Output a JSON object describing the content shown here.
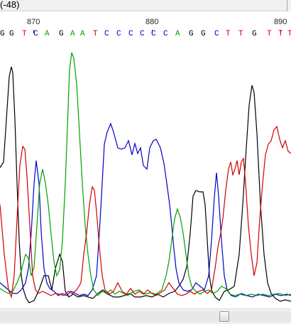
{
  "window": {
    "title_fragment": "(-48)"
  },
  "ruler": {
    "labels": [
      "870",
      "880",
      "890"
    ]
  },
  "sequence": {
    "bases": [
      "G",
      "G",
      "T",
      "C",
      "A",
      "G",
      "A",
      "A",
      "T",
      "C",
      "C",
      "C",
      "C",
      "C",
      "C",
      "A",
      "G",
      "G",
      "C",
      "T",
      "T",
      "G",
      "T",
      "T",
      "T"
    ]
  },
  "colors": {
    "A": "#00a000",
    "C": "#0000c8",
    "G": "#000000",
    "T": "#d00000"
  },
  "scrollbar": {
    "position": 0.78
  }
}
